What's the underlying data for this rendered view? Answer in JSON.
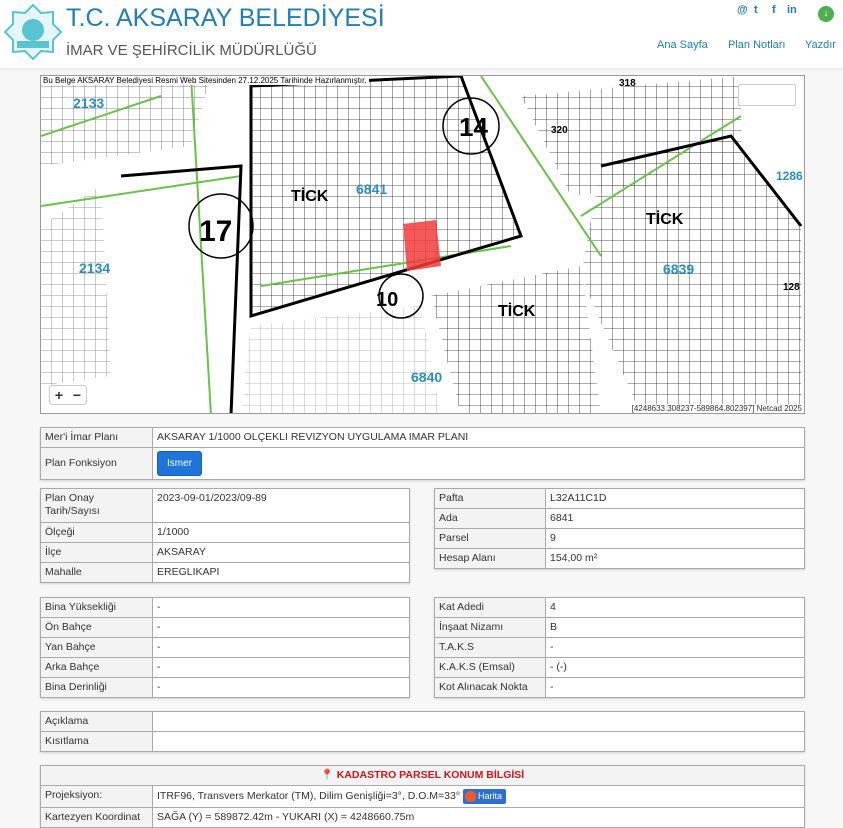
{
  "header": {
    "title": "T.C. AKSARAY BELEDİYESİ",
    "subtitle": "İMAR VE ŞEHİRCİLİK MÜDÜRLÜĞÜ",
    "logo_text": "AKSARAY BELEDİYESİ",
    "social": [
      "@",
      "t",
      "f",
      "in"
    ],
    "nav": [
      "Ana Sayfa",
      "Plan Notları",
      "Yazdır"
    ]
  },
  "map": {
    "notice": "Bu Belge AKSARAY Belediyesi Resmi Web Sitesinden 27.12.2025 Tarihinde Hazırlanmıştır.",
    "attribution": "[4248633.308237-589864.802397] Netcad 2025",
    "zoom_in": "+",
    "zoom_out": "−",
    "labels": [
      "2133",
      "TİCK",
      "6841",
      "14",
      "2134",
      "17",
      "10",
      "TİCK",
      "6840",
      "TİCK",
      "6839",
      "318",
      "320",
      "1286",
      "128"
    ],
    "highlight_color": "#f23b3b"
  },
  "plan": {
    "rows": [
      {
        "label": "Mer'i İmar Planı",
        "value": "AKSARAY 1/1000 OLÇEKLI REVIZYON UYGULAMA IMAR PLANI"
      },
      {
        "label": "Plan Fonksiyon",
        "button": "Ismer"
      }
    ]
  },
  "info_left": [
    {
      "label": "Plan Onay Tarih/Sayısı",
      "value": "2023-09-01/2023/09-89"
    },
    {
      "label": "Ölçeği",
      "value": "1/1000"
    },
    {
      "label": "İlçe",
      "value": "AKSARAY"
    },
    {
      "label": "Mahalle",
      "value": "EREGLIKAPI"
    }
  ],
  "info_right": [
    {
      "label": "Pafta",
      "value": "L32A11C1D"
    },
    {
      "label": "Ada",
      "value": "6841"
    },
    {
      "label": "Parsel",
      "value": "9"
    },
    {
      "label": "Hesap Alanı",
      "value": "154,00 m²"
    }
  ],
  "build_left": [
    {
      "label": "Bina Yüksekliği",
      "value": "-"
    },
    {
      "label": "Ön Bahçe",
      "value": "-"
    },
    {
      "label": "Yan Bahçe",
      "value": "-"
    },
    {
      "label": "Arka Bahçe",
      "value": "-"
    },
    {
      "label": "Bina Derinliği",
      "value": "-"
    }
  ],
  "build_right": [
    {
      "label": "Kat Adedi",
      "value": "4"
    },
    {
      "label": "İnşaat Nizamı",
      "value": "B"
    },
    {
      "label": "T.A.K.S",
      "value": "-"
    },
    {
      "label": "K.A.K.S (Emsal)",
      "value": "- (-)"
    },
    {
      "label": "Kot Alınacak Nokta",
      "value": "-"
    }
  ],
  "notes": [
    {
      "label": "Açıklama",
      "value": ""
    },
    {
      "label": "Kısıtlama",
      "value": ""
    }
  ],
  "kadastro": {
    "title": "KADASTRO PARSEL KONUM BİLGİSİ",
    "rows": [
      {
        "label": "Projeksiyon:",
        "value": "ITRF96, Transvers Merkator (TM), Dilim Genişliği=3°, D.O.M=33°",
        "button": "Harita"
      },
      {
        "label": "Kartezyen Koordinat",
        "value": "SAĞA (Y) = 589872.42m - YUKARI (X) = 4248660.75m"
      }
    ]
  }
}
